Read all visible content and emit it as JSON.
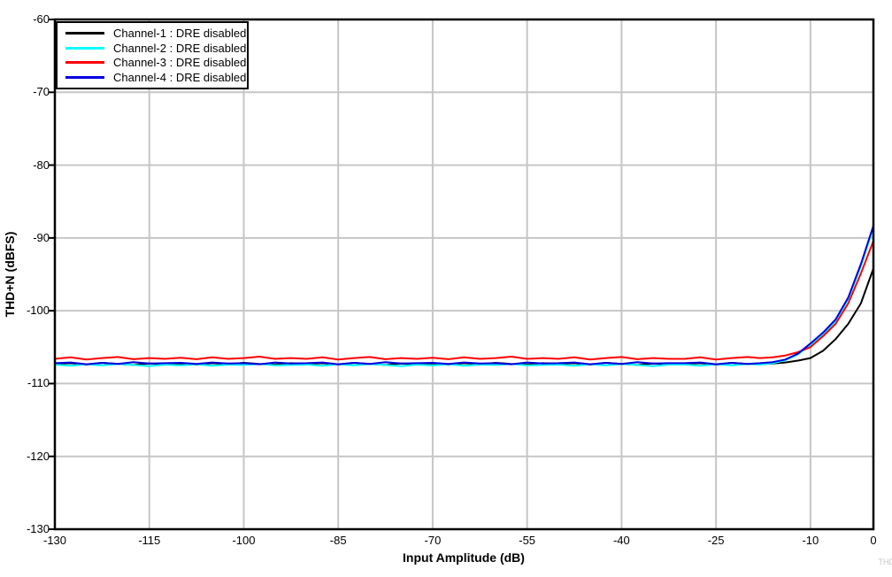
{
  "figure": {
    "watermark": "THD"
  },
  "colors": {
    "background": "#ffffff",
    "axis": "#000000",
    "grid": "#c6c6c6",
    "watermark": "#c6c6c6"
  },
  "legend": {
    "position": "top-left",
    "items": [
      {
        "label": "Channel-1 : DRE disabled",
        "color": "#000000"
      },
      {
        "label": "Channel-2 : DRE disabled",
        "color": "#00ffff"
      },
      {
        "label": "Channel-3 : DRE disabled",
        "color": "#ff0000"
      },
      {
        "label": "Channel-4 : DRE disabled",
        "color": "#0000e0"
      }
    ]
  },
  "chart_data": {
    "type": "line",
    "title": "",
    "xlabel": "Input Amplitude (dB)",
    "ylabel": "THD+N (dBFS)",
    "xlim": [
      -130,
      0
    ],
    "ylim": [
      -130,
      -60
    ],
    "grid": true,
    "legend_position": "top-left",
    "x_ticks": [
      -130,
      -115,
      -100,
      -85,
      -70,
      -55,
      -40,
      -25,
      -10,
      0
    ],
    "x_tick_labels": [
      "-130",
      "-115",
      "-100",
      "-85",
      "-70",
      "-55",
      "-40",
      "-25",
      "-10",
      "0"
    ],
    "y_ticks": [
      -60,
      -70,
      -80,
      -90,
      -100,
      -110,
      -120,
      -130
    ],
    "y_tick_labels": [
      "-60",
      "-70",
      "-80",
      "-90",
      "-100",
      "-110",
      "-120",
      "-130"
    ],
    "x": [
      -130,
      -127.5,
      -125,
      -122.5,
      -120,
      -117.5,
      -115,
      -112.5,
      -110,
      -107.5,
      -105,
      -102.5,
      -100,
      -97.5,
      -95,
      -92.5,
      -90,
      -87.5,
      -85,
      -82.5,
      -80,
      -77.5,
      -75,
      -72.5,
      -70,
      -67.5,
      -65,
      -62.5,
      -60,
      -57.5,
      -55,
      -52.5,
      -50,
      -47.5,
      -45,
      -42.5,
      -40,
      -37.5,
      -35,
      -32.5,
      -30,
      -27.5,
      -25,
      -22.5,
      -20,
      -18,
      -16,
      -14,
      -12,
      -10,
      -8,
      -6,
      -4,
      -2,
      0
    ],
    "series": [
      {
        "name": "Channel-1 : DRE disabled",
        "color": "#000000",
        "values": [
          -107.3,
          -107.2,
          -107.4,
          -107.15,
          -107.3,
          -107.45,
          -107.25,
          -107.35,
          -107.25,
          -107.4,
          -107.2,
          -107.35,
          -107.15,
          -107.3,
          -107.4,
          -107.2,
          -107.3,
          -107.2,
          -107.4,
          -107.15,
          -107.3,
          -107.45,
          -107.25,
          -107.35,
          -107.25,
          -107.4,
          -107.2,
          -107.35,
          -107.15,
          -107.3,
          -107.4,
          -107.2,
          -107.3,
          -107.2,
          -107.4,
          -107.15,
          -107.3,
          -107.45,
          -107.25,
          -107.35,
          -107.3,
          -107.2,
          -107.4,
          -107.15,
          -107.3,
          -107.35,
          -107.25,
          -107.1,
          -106.85,
          -106.5,
          -105.5,
          -103.9,
          -101.8,
          -99.0,
          -94.2
        ]
      },
      {
        "name": "Channel-2 : DRE disabled",
        "color": "#00ffff",
        "values": [
          -107.4,
          -107.55,
          -107.35,
          -107.5,
          -107.3,
          -107.45,
          -107.6,
          -107.4,
          -107.5,
          -107.35,
          -107.55,
          -107.4,
          -107.45,
          -107.3,
          -107.5,
          -107.45,
          -107.4,
          -107.55,
          -107.35,
          -107.5,
          -107.3,
          -107.45,
          -107.6,
          -107.4,
          -107.5,
          -107.35,
          -107.55,
          -107.4,
          -107.45,
          -107.3,
          -107.5,
          -107.45,
          -107.4,
          -107.55,
          -107.35,
          -107.5,
          -107.3,
          -107.45,
          -107.6,
          -107.4,
          -107.4,
          -107.55,
          -107.35,
          -107.5,
          -107.3,
          -107.4,
          -107.2,
          -106.8,
          -106.0,
          -104.7,
          -103.2,
          -101.4,
          -98.4,
          -93.9,
          -88.6
        ]
      },
      {
        "name": "Channel-3 : DRE disabled",
        "color": "#ff0000",
        "values": [
          -106.6,
          -106.4,
          -106.7,
          -106.5,
          -106.35,
          -106.65,
          -106.5,
          -106.6,
          -106.45,
          -106.65,
          -106.4,
          -106.6,
          -106.5,
          -106.3,
          -106.6,
          -106.5,
          -106.6,
          -106.4,
          -106.7,
          -106.5,
          -106.35,
          -106.65,
          -106.5,
          -106.6,
          -106.45,
          -106.65,
          -106.4,
          -106.6,
          -106.5,
          -106.3,
          -106.6,
          -106.5,
          -106.6,
          -106.4,
          -106.7,
          -106.5,
          -106.35,
          -106.65,
          -106.5,
          -106.6,
          -106.6,
          -106.4,
          -106.7,
          -106.5,
          -106.35,
          -106.5,
          -106.4,
          -106.15,
          -105.7,
          -105.0,
          -103.5,
          -101.8,
          -99.0,
          -94.9,
          -90.4
        ]
      },
      {
        "name": "Channel-4 : DRE disabled",
        "color": "#0000e0",
        "values": [
          -107.2,
          -107.1,
          -107.35,
          -107.15,
          -107.3,
          -107.05,
          -107.25,
          -107.2,
          -107.15,
          -107.3,
          -107.1,
          -107.25,
          -107.2,
          -107.35,
          -107.1,
          -107.25,
          -107.2,
          -107.1,
          -107.35,
          -107.15,
          -107.3,
          -107.05,
          -107.25,
          -107.2,
          -107.15,
          -107.3,
          -107.1,
          -107.25,
          -107.2,
          -107.35,
          -107.1,
          -107.25,
          -107.2,
          -107.1,
          -107.35,
          -107.15,
          -107.3,
          -107.05,
          -107.25,
          -107.2,
          -107.2,
          -107.1,
          -107.35,
          -107.15,
          -107.3,
          -107.2,
          -107.05,
          -106.7,
          -105.9,
          -104.5,
          -103.0,
          -101.2,
          -98.2,
          -93.6,
          -88.3
        ]
      }
    ]
  }
}
